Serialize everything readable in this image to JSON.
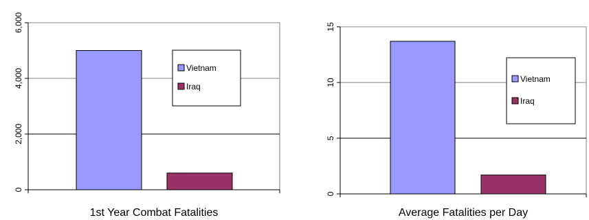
{
  "chart_data": [
    {
      "type": "bar",
      "categories": [
        "Vietnam",
        "Iraq"
      ],
      "values": [
        5000,
        600
      ],
      "title": "1st Year Combat Fatalities",
      "xlabel": "",
      "ylabel": "",
      "ylim": [
        0,
        6000
      ],
      "yticks": [
        "0",
        "2,000",
        "4,000",
        "6,000"
      ],
      "ytick_values": [
        0,
        2000,
        4000,
        6000
      ],
      "grid": true,
      "legend": "upper-right",
      "colors": [
        "#9999ff",
        "#993366"
      ]
    },
    {
      "type": "bar",
      "categories": [
        "Vietnam",
        "Iraq"
      ],
      "values": [
        13.7,
        1.7
      ],
      "title": "Average Fatalities per Day",
      "xlabel": "",
      "ylabel": "",
      "ylim": [
        0,
        15
      ],
      "yticks": [
        "0",
        "5",
        "10",
        "15"
      ],
      "ytick_values": [
        0,
        5,
        10,
        15
      ],
      "grid": true,
      "legend": "upper-right",
      "colors": [
        "#9999ff",
        "#993366"
      ]
    }
  ]
}
